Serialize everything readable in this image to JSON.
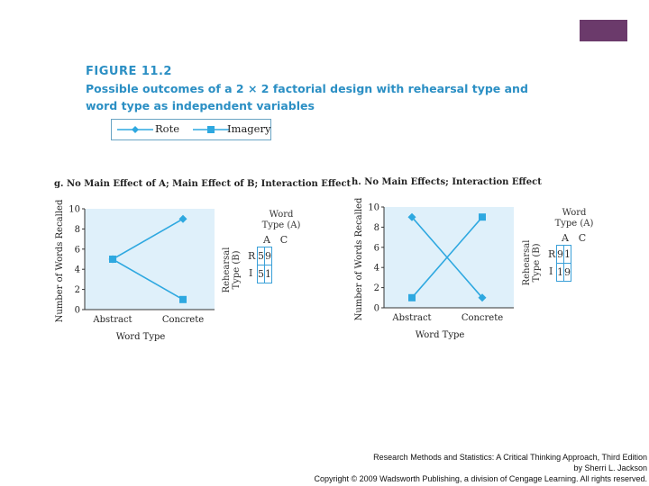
{
  "figure": {
    "label": "FIGURE 11.2",
    "caption": "Possible outcomes of a 2 × 2 factorial design with rehearsal type and word type as independent variables"
  },
  "legend": {
    "rote": "Rote",
    "imagery": "Imagery"
  },
  "colors": {
    "series": "#2ea8e0",
    "plot_bg": "#dff0fa",
    "frame": "#3aa0d8",
    "accent": "#6b3a6b",
    "title": "#2b8fc4"
  },
  "chart_data": [
    {
      "type": "line",
      "panel_title": "g. No Main Effect of A; Main Effect of B; Interaction Effect",
      "categories": [
        "Abstract",
        "Concrete"
      ],
      "series": [
        {
          "name": "Rote",
          "marker": "diamond",
          "values": [
            5,
            9
          ]
        },
        {
          "name": "Imagery",
          "marker": "square",
          "values": [
            5,
            1
          ]
        }
      ],
      "xlabel": "Word Type",
      "ylabel": "Number of Words Recalled",
      "ylim": [
        0,
        10
      ],
      "yticks": [
        "0",
        "2",
        "4",
        "6",
        "8",
        "10"
      ],
      "table": {
        "col_title_1": "Word",
        "col_title_2": "Type (A)",
        "row_title_1": "Rehearsal",
        "row_title_2": "Type (B)",
        "columns": [
          "A",
          "C"
        ],
        "rows": [
          "R",
          "I"
        ],
        "cells": [
          [
            "5",
            "9"
          ],
          [
            "5",
            "1"
          ]
        ]
      }
    },
    {
      "type": "line",
      "panel_title": "h. No Main Effects; Interaction Effect",
      "categories": [
        "Abstract",
        "Concrete"
      ],
      "series": [
        {
          "name": "Rote",
          "marker": "diamond",
          "values": [
            9,
            1
          ]
        },
        {
          "name": "Imagery",
          "marker": "square",
          "values": [
            1,
            9
          ]
        }
      ],
      "xlabel": "Word Type",
      "ylabel": "Number of Words Recalled",
      "ylim": [
        0,
        10
      ],
      "yticks": [
        "0",
        "2",
        "4",
        "6",
        "8",
        "10"
      ],
      "table": {
        "col_title_1": "Word",
        "col_title_2": "Type (A)",
        "row_title_1": "Rehearsal",
        "row_title_2": "Type (B)",
        "columns": [
          "A",
          "C"
        ],
        "rows": [
          "R",
          "I"
        ],
        "cells": [
          [
            "9",
            "1"
          ],
          [
            "1",
            "9"
          ]
        ]
      }
    }
  ],
  "credit": {
    "line1": "Research Methods and Statistics: A Critical Thinking Approach, Third Edition",
    "line2": "by Sherri L. Jackson",
    "line3": "Copyright © 2009 Wadsworth Publishing, a division of Cengage Learning. All rights reserved."
  }
}
